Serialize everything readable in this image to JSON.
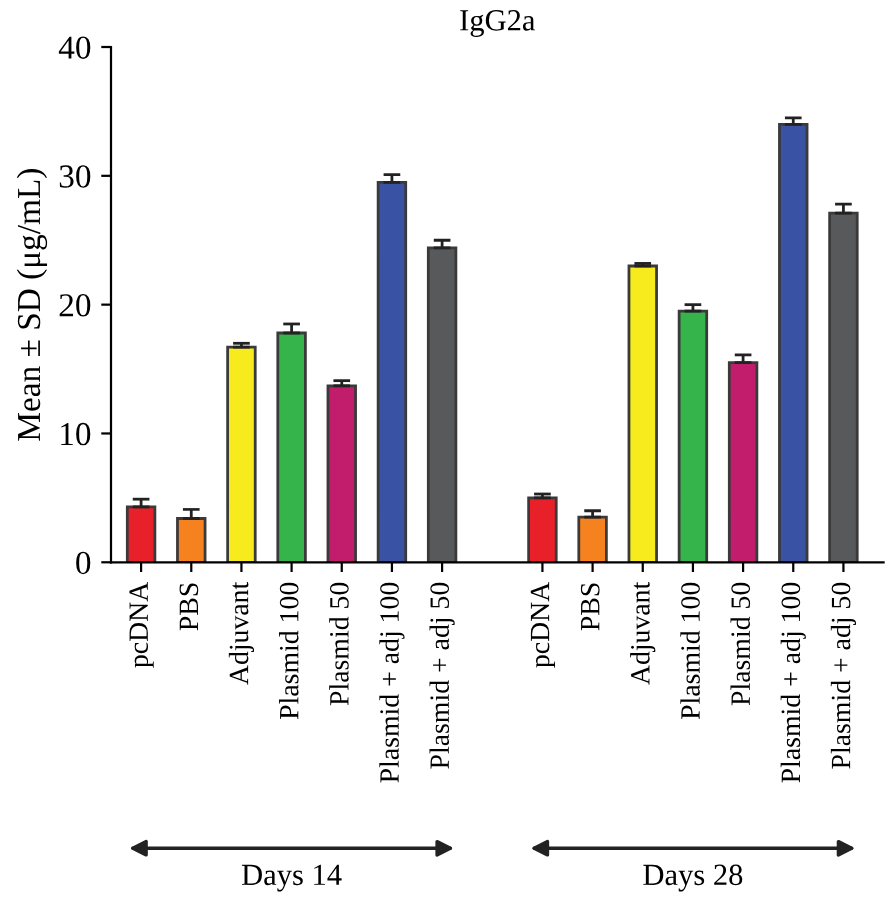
{
  "chart_data": {
    "type": "bar",
    "title": "IgG2a",
    "ylabel": "Mean ± SD (μg/mL)",
    "categories": [
      "pcDNA",
      "PBS",
      "Adjuvant",
      "Plasmid 100",
      "Plasmid 50",
      "Plasmid + adj 100",
      "Plasmid + adj 50",
      null,
      "pcDNA",
      "PBS",
      "Adjuvant",
      "Plasmid 100",
      "Plasmid 50",
      "Plasmid + adj 100",
      "Plasmid + adj 50"
    ],
    "values": [
      4.3,
      3.4,
      16.7,
      17.8,
      13.7,
      29.5,
      24.4,
      null,
      5.0,
      3.5,
      23.0,
      19.5,
      15.5,
      34.0,
      27.1
    ],
    "errors": [
      [
        4.3,
        4.9
      ],
      [
        3.4,
        4.1
      ],
      [
        16.7,
        17.0
      ],
      [
        17.8,
        18.5
      ],
      [
        13.7,
        14.1
      ],
      [
        29.5,
        30.1
      ],
      [
        24.4,
        25.0
      ],
      null,
      [
        5.0,
        5.3
      ],
      [
        3.5,
        4.0
      ],
      [
        23.0,
        23.2
      ],
      [
        19.5,
        20.0
      ],
      [
        15.5,
        16.1
      ],
      [
        34.0,
        34.5
      ],
      [
        27.1,
        27.8
      ]
    ],
    "colors": [
      "#e8202a",
      "#f5821f",
      "#f7eb1e",
      "#34b44a",
      "#c21d6c",
      "#3a52a4",
      "#58595b",
      null,
      "#e8202a",
      "#f5821f",
      "#f7eb1e",
      "#34b44a",
      "#c21d6c",
      "#3a52a4",
      "#58595b"
    ],
    "ylim": [
      0,
      40
    ],
    "yticks": [
      0,
      10,
      20,
      30,
      40
    ],
    "annotations": [
      "Days 14",
      "Days 28"
    ],
    "grid": false,
    "legend": false
  }
}
